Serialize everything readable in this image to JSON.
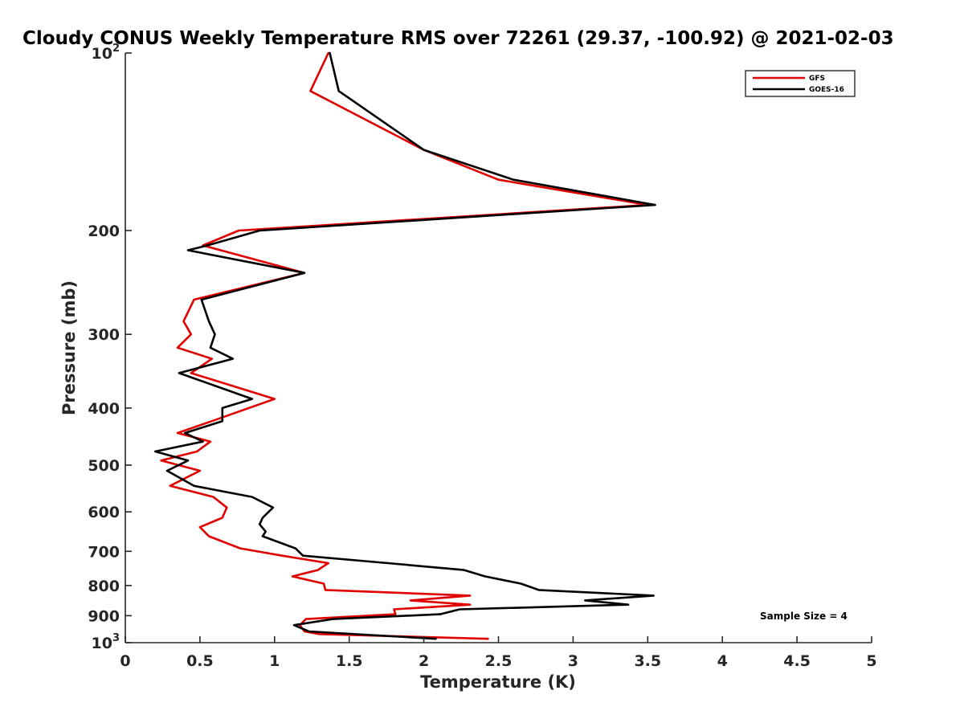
{
  "chart_data": {
    "type": "line",
    "title": "Cloudy CONUS Weekly Temperature RMS over 72261 (29.37, -100.92) @ 2021-02-03",
    "xlabel": "Temperature (K)",
    "ylabel": "Pressure (mb)",
    "xlim": [
      0,
      5
    ],
    "ylim": [
      100,
      1000
    ],
    "yscale": "log",
    "y_reversed": true,
    "x_ticks": [
      "0",
      "0.5",
      "1",
      "1.5",
      "2",
      "2.5",
      "3",
      "3.5",
      "4",
      "4.5",
      "5"
    ],
    "y_ticks": [
      {
        "value": 100,
        "label": "10",
        "sup": "2"
      },
      {
        "value": 200,
        "label": "200"
      },
      {
        "value": 300,
        "label": "300"
      },
      {
        "value": 400,
        "label": "400"
      },
      {
        "value": 500,
        "label": "500"
      },
      {
        "value": 600,
        "label": "600"
      },
      {
        "value": 700,
        "label": "700"
      },
      {
        "value": 800,
        "label": "800"
      },
      {
        "value": 900,
        "label": "900"
      },
      {
        "value": 1000,
        "label": "10",
        "sup": "3"
      }
    ],
    "legend_position": "top-right",
    "annotation": "Sample Size = 4",
    "series": [
      {
        "name": "GFS",
        "color": "#e00000",
        "points": [
          [
            1.36,
            100
          ],
          [
            1.24,
            116
          ],
          [
            2.0,
            146
          ],
          [
            2.5,
            164
          ],
          [
            3.5,
            181
          ],
          [
            0.76,
            200
          ],
          [
            0.52,
            212
          ],
          [
            1.2,
            236
          ],
          [
            0.46,
            262
          ],
          [
            0.39,
            285
          ],
          [
            0.44,
            300
          ],
          [
            0.35,
            316
          ],
          [
            0.58,
            330
          ],
          [
            0.44,
            349
          ],
          [
            1.0,
            386
          ],
          [
            0.58,
            421
          ],
          [
            0.35,
            441
          ],
          [
            0.57,
            456
          ],
          [
            0.48,
            474
          ],
          [
            0.24,
            491
          ],
          [
            0.5,
            511
          ],
          [
            0.3,
            542
          ],
          [
            0.59,
            566
          ],
          [
            0.68,
            590
          ],
          [
            0.65,
            614
          ],
          [
            0.5,
            637
          ],
          [
            0.56,
            660
          ],
          [
            0.77,
            692
          ],
          [
            1.05,
            712
          ],
          [
            1.36,
            733
          ],
          [
            1.29,
            753
          ],
          [
            1.12,
            772
          ],
          [
            1.33,
            794
          ],
          [
            1.34,
            814
          ],
          [
            2.31,
            832
          ],
          [
            1.91,
            848
          ],
          [
            2.31,
            862
          ],
          [
            1.8,
            878
          ],
          [
            1.81,
            895
          ],
          [
            1.21,
            912
          ],
          [
            1.17,
            934
          ],
          [
            1.2,
            957
          ],
          [
            1.3,
            967
          ],
          [
            2.43,
            985
          ]
        ]
      },
      {
        "name": "GOES-16",
        "color": "#000000",
        "points": [
          [
            1.37,
            100
          ],
          [
            1.43,
            116
          ],
          [
            2.0,
            146
          ],
          [
            2.6,
            164
          ],
          [
            3.55,
            181
          ],
          [
            0.9,
            200
          ],
          [
            0.55,
            212
          ],
          [
            0.42,
            216
          ],
          [
            1.2,
            236
          ],
          [
            0.51,
            262
          ],
          [
            0.56,
            285
          ],
          [
            0.6,
            300
          ],
          [
            0.57,
            316
          ],
          [
            0.72,
            330
          ],
          [
            0.36,
            349
          ],
          [
            0.85,
            386
          ],
          [
            0.65,
            400
          ],
          [
            0.65,
            421
          ],
          [
            0.4,
            441
          ],
          [
            0.52,
            456
          ],
          [
            0.2,
            474
          ],
          [
            0.42,
            491
          ],
          [
            0.28,
            511
          ],
          [
            0.46,
            542
          ],
          [
            0.85,
            566
          ],
          [
            0.99,
            590
          ],
          [
            0.92,
            614
          ],
          [
            0.9,
            630
          ],
          [
            0.94,
            648
          ],
          [
            0.92,
            660
          ],
          [
            1.14,
            692
          ],
          [
            1.19,
            712
          ],
          [
            1.76,
            733
          ],
          [
            2.27,
            753
          ],
          [
            2.41,
            772
          ],
          [
            2.65,
            794
          ],
          [
            2.77,
            814
          ],
          [
            3.54,
            832
          ],
          [
            3.08,
            848
          ],
          [
            3.37,
            862
          ],
          [
            2.24,
            878
          ],
          [
            2.11,
            895
          ],
          [
            1.39,
            912
          ],
          [
            1.13,
            934
          ],
          [
            1.23,
            957
          ],
          [
            2.08,
            985
          ]
        ]
      }
    ]
  }
}
